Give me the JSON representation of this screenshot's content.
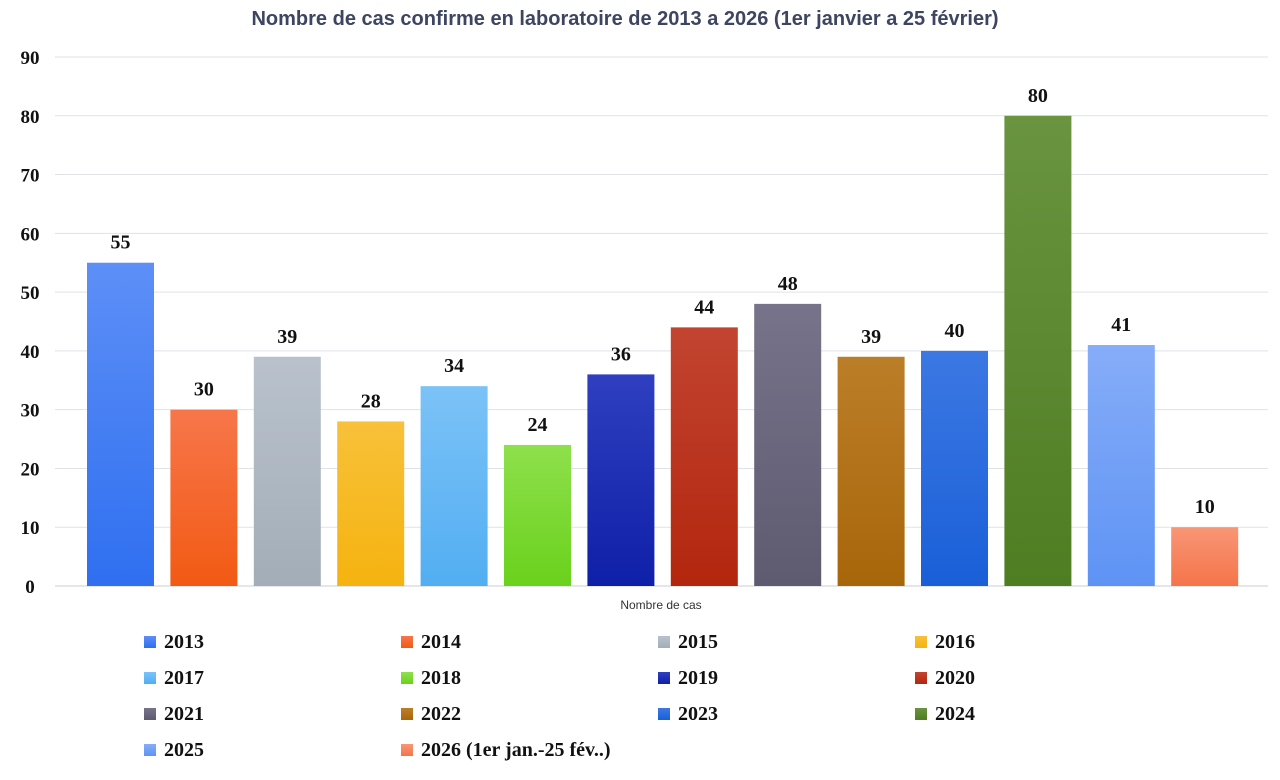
{
  "chart_data": {
    "type": "bar",
    "title": "Nombre de cas confirme en laboratoire de 2013 a 2026 (1er janvier a 25 février)",
    "xlabel": "Nombre de cas",
    "ylabel": "",
    "ylim": [
      0,
      90
    ],
    "yticks": [
      0,
      10,
      20,
      30,
      40,
      50,
      60,
      70,
      80,
      90
    ],
    "grid": true,
    "legend_position": "bottom",
    "categories": [
      "2013",
      "2014",
      "2015",
      "2016",
      "2017",
      "2018",
      "2019",
      "2020",
      "2021",
      "2022",
      "2023",
      "2024",
      "2025",
      "2026 (1er jan.-25 fév..)"
    ],
    "values": [
      55,
      30,
      39,
      28,
      34,
      24,
      36,
      44,
      48,
      39,
      40,
      80,
      41,
      10
    ],
    "colors": [
      "#2f6ff0",
      "#f25a14",
      "#a3adb8",
      "#f5b30f",
      "#52aef2",
      "#6ad11c",
      "#0f20a8",
      "#b3260e",
      "#5e5a70",
      "#a8660a",
      "#1a5fd8",
      "#4e7d22",
      "#5e93f5",
      "#f5744a"
    ],
    "colors_top": [
      "#5d8ff7",
      "#f7764a",
      "#b9c2cc",
      "#f8c13a",
      "#7cc2f7",
      "#8ee04c",
      "#2f3fc0",
      "#c24430",
      "#77738a",
      "#bb7e28",
      "#3c78e3",
      "#6a9440",
      "#86adf8",
      "#f89676"
    ]
  }
}
